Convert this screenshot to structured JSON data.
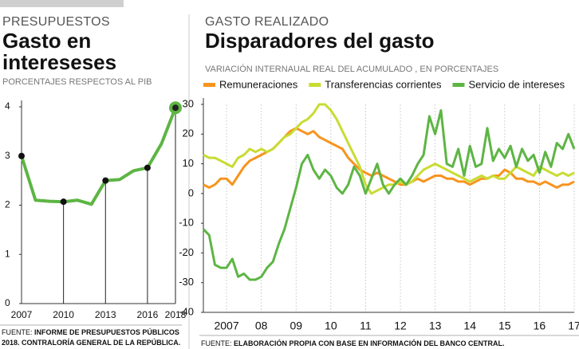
{
  "chart_data": [
    {
      "type": "line",
      "kicker": "PRESUPUESTOS",
      "title": "Gasto en intereseses",
      "subtitle": "PORCENTAJES RESPECTOS AL PIB",
      "x": [
        2007,
        2008,
        2009,
        2010,
        2011,
        2012,
        2013,
        2014,
        2015,
        2016,
        2017,
        2018
      ],
      "values": [
        3.0,
        2.1,
        2.08,
        2.07,
        2.1,
        2.02,
        2.5,
        2.52,
        2.7,
        2.76,
        3.25,
        3.98
      ],
      "color": "#5db544",
      "xlim": [
        2007,
        2018
      ],
      "xticks": [
        2007,
        2010,
        2013,
        2016,
        2018
      ],
      "ylim": [
        0,
        4
      ],
      "yticks": [
        0,
        1,
        2,
        3,
        4
      ],
      "source_label": "FUENTE:",
      "source": "INFORME DE PRESUPUESTOS PÚBLICOS 2018. CONTRALORÍA GENERAL DE LA REPÚBLICA."
    },
    {
      "type": "line",
      "kicker": "GASTO REALIZADO",
      "title": "Disparadores del gasto",
      "subtitle": "VARIACIÓN INTERNAUAL REAL DEL ACUMULADO , EN PORCENTAJES",
      "categories": [
        null,
        null,
        null,
        null,
        "2007",
        null,
        null,
        null,
        null,
        null,
        "08",
        null,
        null,
        null,
        null,
        null,
        "09",
        null,
        null,
        null,
        null,
        null,
        "10",
        null,
        null,
        null,
        null,
        null,
        "11",
        null,
        null,
        null,
        null,
        null,
        "12",
        null,
        null,
        null,
        null,
        null,
        "13",
        null,
        null,
        null,
        null,
        null,
        "14",
        null,
        null,
        null,
        null,
        null,
        "15",
        null,
        null,
        null,
        null,
        null,
        "16",
        null,
        null,
        null,
        null,
        null,
        "17"
      ],
      "series": [
        {
          "name": "Remuneraciones",
          "color": "#f7941e",
          "values": [
            3,
            2,
            3,
            5,
            5,
            3,
            6,
            9,
            11,
            12,
            13,
            14,
            15,
            17,
            19,
            21,
            22,
            21,
            20,
            21,
            19,
            18,
            17,
            16,
            15,
            12,
            10,
            8,
            7,
            6,
            7,
            6,
            5,
            4,
            3,
            3,
            4,
            5,
            4,
            5,
            6,
            6,
            5,
            5,
            4,
            4,
            3,
            4,
            5,
            5,
            6,
            6,
            8,
            7,
            5,
            5,
            4,
            4,
            3,
            4,
            3,
            2,
            3,
            3,
            4
          ]
        },
        {
          "name": "Transferencias corrientes",
          "color": "#c8dc32",
          "values": [
            13,
            12,
            12,
            11,
            10,
            9,
            12,
            13,
            15,
            14,
            15,
            14,
            15,
            17,
            19,
            20,
            22,
            24,
            25,
            27,
            30,
            30,
            28,
            25,
            21,
            17,
            13,
            9,
            3,
            0,
            1,
            2,
            3,
            3,
            4,
            3,
            4,
            6,
            8,
            9,
            10,
            9,
            8,
            7,
            6,
            5,
            4,
            5,
            6,
            5,
            6,
            5,
            5,
            7,
            9,
            8,
            7,
            6,
            9,
            8,
            7,
            6,
            7,
            6,
            7
          ]
        },
        {
          "name": "Servicio de intereses",
          "color": "#5db544",
          "values": [
            -12,
            -14,
            -24,
            -25,
            -25,
            -22,
            -28,
            -27,
            -29,
            -29,
            -28,
            -25,
            -23,
            -17,
            -12,
            -5,
            2,
            10,
            13,
            8,
            5,
            8,
            6,
            2,
            0,
            3,
            9,
            6,
            0,
            5,
            10,
            3,
            0,
            3,
            5,
            3,
            6,
            10,
            13,
            26,
            20,
            28,
            10,
            9,
            15,
            6,
            16,
            9,
            10,
            22,
            11,
            15,
            12,
            16,
            9,
            15,
            11,
            13,
            7,
            14,
            9,
            17,
            15,
            20,
            15
          ]
        }
      ],
      "ylim": [
        -40,
        30
      ],
      "yticks": [
        -40,
        -30,
        -20,
        -10,
        0,
        10,
        20,
        30
      ],
      "x_grid": true,
      "source_label": "FUENTE:",
      "source": "ELABORACIÓN PROPIA CON BASE EN INFORMACIÓN DEL BANCO CENTRAL."
    }
  ]
}
